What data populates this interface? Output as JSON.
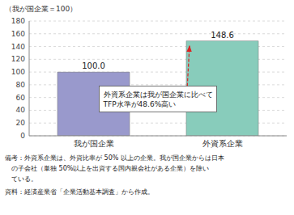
{
  "chart_data": {
    "type": "bar",
    "ylabel": "（我が国企業＝100）",
    "categories": [
      "我が国企業",
      "外資系企業"
    ],
    "values": [
      100.0,
      148.6
    ],
    "value_labels": [
      "100.0",
      "148.6"
    ],
    "data_labels": true,
    "colors": [
      "#9999cc",
      "#88ccbb"
    ],
    "ylim": [
      0,
      180
    ],
    "yticks": [
      0,
      20,
      40,
      60,
      80,
      100,
      120,
      140,
      160,
      180
    ],
    "grid": true,
    "annotations": [
      {
        "lines": [
          "外資系企業は我が国企業に比べて",
          "TFP水準が48.6%高い"
        ],
        "arrow_color": "#dd2222"
      }
    ],
    "notes": [
      "備考：外資系企業は、外資比率が 50% 以上の企業。我が国企業からは日本",
      "　の子会社（単独 50%以上を出資する国内親会社がある企業）を除い",
      "　ている。",
      "資料：経済産業省「企業活動基本調査」から作成。"
    ]
  }
}
